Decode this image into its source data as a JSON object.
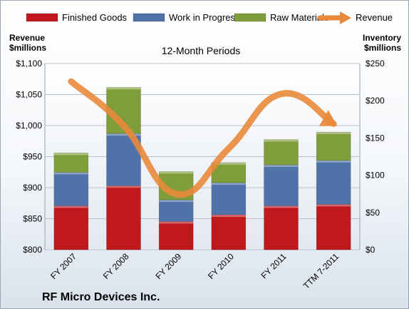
{
  "chart_data": {
    "type": "bar",
    "stacked": true,
    "title": "12-Month Periods",
    "company": "RF Micro Devices Inc.",
    "categories": [
      "FY 2007",
      "FY 2008",
      "FY 2009",
      "FY 2010",
      "FY 2011",
      "TTM 7-2011"
    ],
    "series": [
      {
        "name": "Finished Goods",
        "axis": "right",
        "color": "#c0181c",
        "values": [
          59,
          86,
          38,
          47,
          59,
          61
        ]
      },
      {
        "name": "Work in Progress",
        "axis": "right",
        "color": "#4f72a8",
        "values": [
          45,
          70,
          29,
          43,
          55,
          59
        ]
      },
      {
        "name": "Raw Materials",
        "axis": "right",
        "color": "#7f9d3a",
        "values": [
          26,
          62,
          38,
          27,
          34,
          38
        ]
      }
    ],
    "line_series": {
      "name": "Revenue",
      "axis": "left",
      "color": "#e9893b",
      "values": [
        1071,
        1000,
        890,
        963,
        1051,
        1003
      ]
    },
    "left_axis": {
      "label_line1": "Revenue",
      "label_line2": "$millions",
      "ylim": [
        800,
        1100
      ],
      "ticks": [
        800,
        850,
        900,
        950,
        1000,
        1050,
        1100
      ],
      "tick_labels": [
        "$800",
        "$850",
        "$900",
        "$950",
        "$1,000",
        "$1,050",
        "$1,100"
      ]
    },
    "right_axis": {
      "label_line1": "Inventory",
      "label_line2": "$millions",
      "ylim": [
        0,
        250
      ],
      "ticks": [
        0,
        50,
        100,
        150,
        200,
        250
      ],
      "tick_labels": [
        "$0",
        "$50",
        "$100",
        "$150",
        "$200",
        "$250"
      ]
    },
    "legend": {
      "position": "top",
      "items": [
        {
          "label": "Finished Goods",
          "kind": "bar",
          "color": "#c0181c"
        },
        {
          "label": "Work in Progress",
          "kind": "bar",
          "color": "#4f72a8"
        },
        {
          "label": "Raw Materials",
          "kind": "bar",
          "color": "#7f9d3a"
        },
        {
          "label": "Revenue",
          "kind": "arrow",
          "color": "#e9893b"
        }
      ]
    },
    "grid": true
  }
}
